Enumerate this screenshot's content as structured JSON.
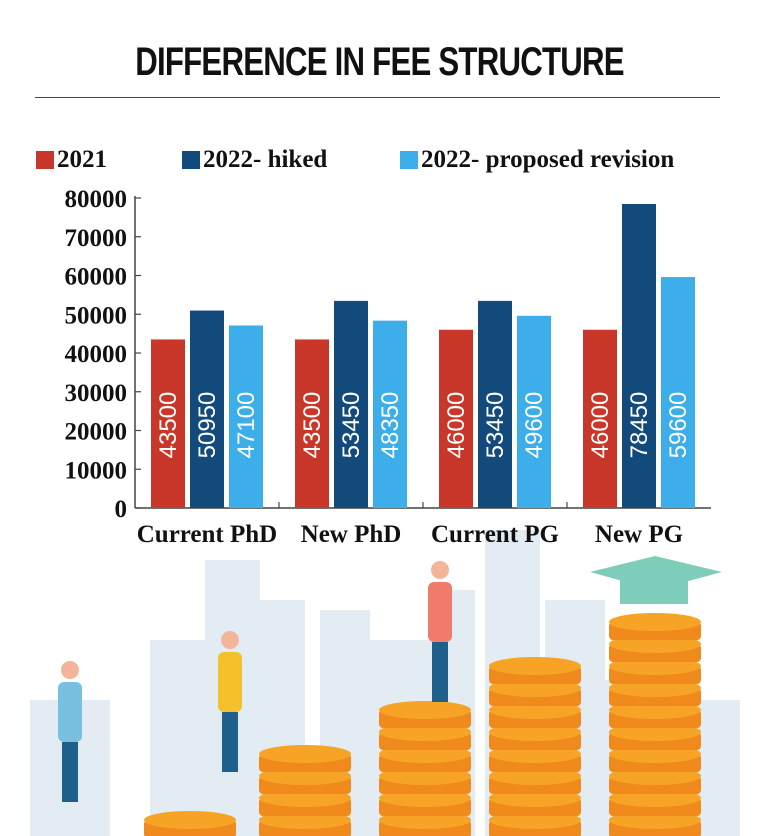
{
  "chart_data": {
    "type": "bar",
    "title": "DIFFERENCE IN FEE STRUCTURE",
    "xlabel": "",
    "ylabel": "",
    "categories": [
      "Current PhD",
      "New PhD",
      "Current PG",
      "New PG"
    ],
    "series": [
      {
        "name": "2021",
        "color": "#c9372a",
        "values": [
          43500,
          43500,
          46000,
          46000
        ]
      },
      {
        "name": "2022- hiked",
        "color": "#124a7c",
        "values": [
          50950,
          53450,
          53450,
          78450
        ]
      },
      {
        "name": "2022- proposed revision",
        "color": "#3daee9",
        "values": [
          47100,
          48350,
          49600,
          59600
        ]
      }
    ],
    "ylim": [
      0,
      80000
    ],
    "yticks": [
      "0",
      "10000",
      "20000",
      "30000",
      "40000",
      "50000",
      "60000",
      "70000",
      "80000"
    ],
    "data_labels": "vertical inside bars",
    "grid": false,
    "legend_position": "top"
  },
  "illustration": {
    "description_icons": [
      "walking-student-icon",
      "climbing-student-icon",
      "coin-stack-icon",
      "graduation-cap-icon",
      "city-skyline-icon"
    ],
    "coin_color": "#f7a325",
    "cap_color": "#7ecdbb"
  }
}
